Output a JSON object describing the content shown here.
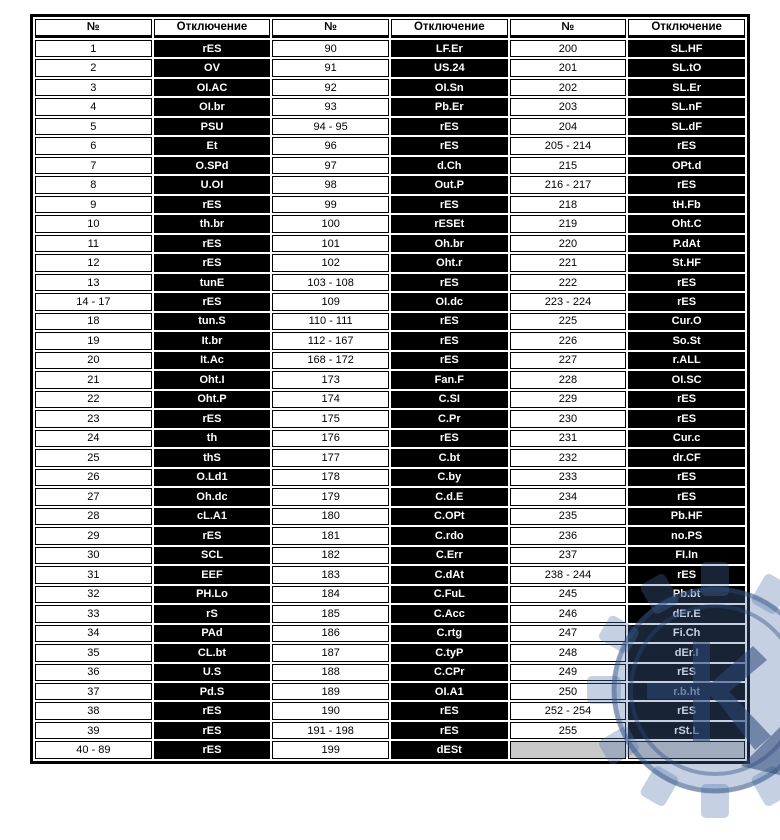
{
  "table": {
    "headers": [
      "№",
      "Отключение",
      "№",
      "Отключение",
      "№",
      "Отключение"
    ],
    "rows": [
      [
        "1",
        "rES",
        "90",
        "LF.Er",
        "200",
        "SL.HF"
      ],
      [
        "2",
        "OV",
        "91",
        "US.24",
        "201",
        "SL.tO"
      ],
      [
        "3",
        "OI.AC",
        "92",
        "OI.Sn",
        "202",
        "SL.Er"
      ],
      [
        "4",
        "OI.br",
        "93",
        "Pb.Er",
        "203",
        "SL.nF"
      ],
      [
        "5",
        "PSU",
        "94 - 95",
        "rES",
        "204",
        "SL.dF"
      ],
      [
        "6",
        "Et",
        "96",
        "rES",
        "205 - 214",
        "rES"
      ],
      [
        "7",
        "O.SPd",
        "97",
        "d.Ch",
        "215",
        "OPt.d"
      ],
      [
        "8",
        "U.OI",
        "98",
        "Out.P",
        "216 - 217",
        "rES"
      ],
      [
        "9",
        "rES",
        "99",
        "rES",
        "218",
        "tH.Fb"
      ],
      [
        "10",
        "th.br",
        "100",
        "rESEt",
        "219",
        "Oht.C"
      ],
      [
        "11",
        "rES",
        "101",
        "Oh.br",
        "220",
        "P.dAt"
      ],
      [
        "12",
        "rES",
        "102",
        "Oht.r",
        "221",
        "St.HF"
      ],
      [
        "13",
        "tunE",
        "103 - 108",
        "rES",
        "222",
        "rES"
      ],
      [
        "14 - 17",
        "rES",
        "109",
        "OI.dc",
        "223 - 224",
        "rES"
      ],
      [
        "18",
        "tun.S",
        "110 - 111",
        "rES",
        "225",
        "Cur.O"
      ],
      [
        "19",
        "It.br",
        "112 - 167",
        "rES",
        "226",
        "So.St"
      ],
      [
        "20",
        "It.Ac",
        "168 - 172",
        "rES",
        "227",
        "r.ALL"
      ],
      [
        "21",
        "Oht.I",
        "173",
        "Fan.F",
        "228",
        "OI.SC"
      ],
      [
        "22",
        "Oht.P",
        "174",
        "C.SI",
        "229",
        "rES"
      ],
      [
        "23",
        "rES",
        "175",
        "C.Pr",
        "230",
        "rES"
      ],
      [
        "24",
        "th",
        "176",
        "rES",
        "231",
        "Cur.c"
      ],
      [
        "25",
        "thS",
        "177",
        "C.bt",
        "232",
        "dr.CF"
      ],
      [
        "26",
        "O.Ld1",
        "178",
        "C.by",
        "233",
        "rES"
      ],
      [
        "27",
        "Oh.dc",
        "179",
        "C.d.E",
        "234",
        "rES"
      ],
      [
        "28",
        "cL.A1",
        "180",
        "C.OPt",
        "235",
        "Pb.HF"
      ],
      [
        "29",
        "rES",
        "181",
        "C.rdo",
        "236",
        "no.PS"
      ],
      [
        "30",
        "SCL",
        "182",
        "C.Err",
        "237",
        "FI.In"
      ],
      [
        "31",
        "EEF",
        "183",
        "C.dAt",
        "238 - 244",
        "rES"
      ],
      [
        "32",
        "PH.Lo",
        "184",
        "C.FuL",
        "245",
        "Pb.bt"
      ],
      [
        "33",
        "rS",
        "185",
        "C.Acc",
        "246",
        "dEr.E"
      ],
      [
        "34",
        "PAd",
        "186",
        "C.rtg",
        "247",
        "Fi.Ch"
      ],
      [
        "35",
        "CL.bt",
        "187",
        "C.tyP",
        "248",
        "dEr.I"
      ],
      [
        "36",
        "U.S",
        "188",
        "C.CPr",
        "249",
        "rES"
      ],
      [
        "37",
        "Pd.S",
        "189",
        "OI.A1",
        "250",
        "r.b.ht"
      ],
      [
        "38",
        "rES",
        "190",
        "rES",
        "252 - 254",
        "rES"
      ],
      [
        "39",
        "rES",
        "191 - 198",
        "rES",
        "255",
        "rSt.L"
      ],
      [
        "40 - 89",
        "rES",
        "199",
        "dESt",
        null,
        null
      ]
    ]
  },
  "colors": {
    "table_border": "#000000",
    "code_cell_bg": "#000000",
    "code_cell_text": "#ffffff",
    "empty_cell_bg": "#c9c9c9",
    "watermark_blue": "#4a6fa8",
    "watermark_dark_blue": "#2c4878"
  },
  "watermark": {
    "name": "gear-K-logo"
  }
}
